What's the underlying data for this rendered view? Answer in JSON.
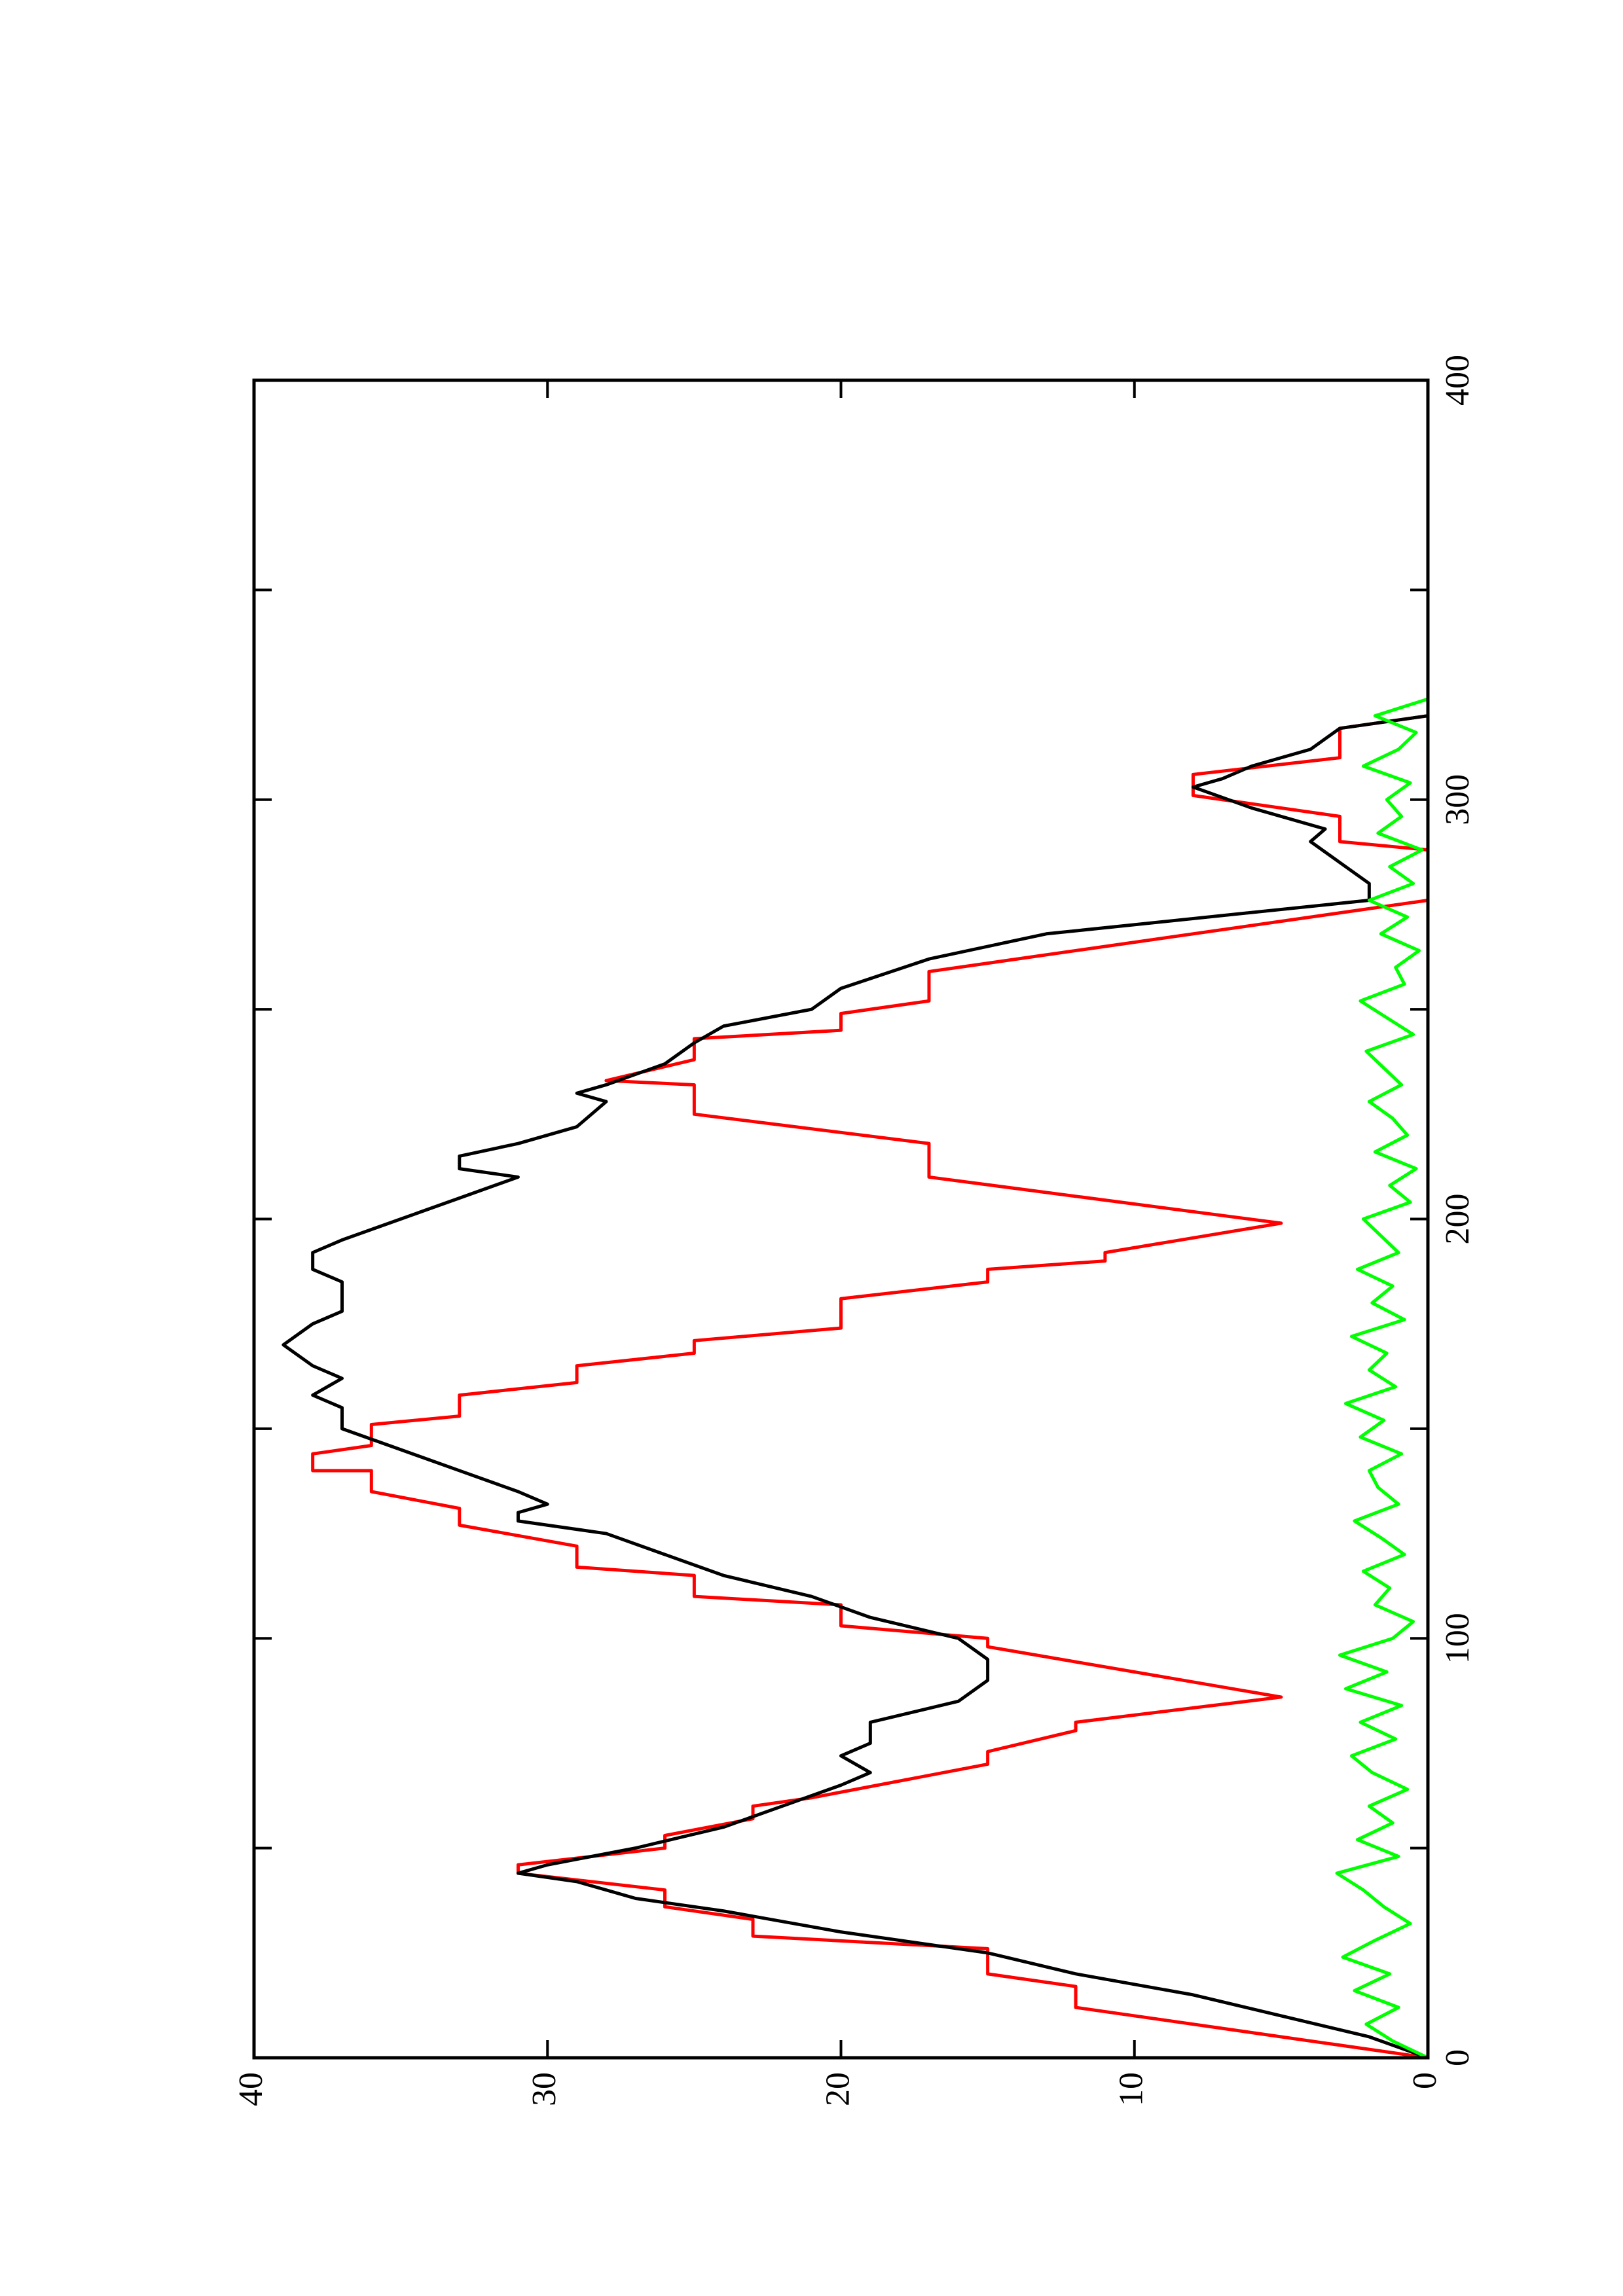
{
  "chart_data": {
    "type": "line",
    "xlim": [
      0,
      400
    ],
    "xticks": [
      0,
      100,
      200,
      300,
      400
    ],
    "xminorticks": [
      50,
      150,
      250,
      350
    ],
    "ylim": [
      0,
      40
    ],
    "yticks": [
      0,
      10,
      20,
      30,
      40
    ],
    "series": [
      {
        "color": "#ff0000",
        "x": [
          0,
          12,
          17,
          20,
          26,
          29,
          33,
          36,
          40,
          44,
          46,
          50,
          53,
          57,
          60,
          62,
          70,
          73,
          78,
          80,
          86,
          98,
          100,
          103,
          108,
          110,
          115,
          117,
          122,
          127,
          131,
          135,
          140,
          140,
          144,
          146,
          151,
          153,
          158,
          161,
          165,
          168,
          171,
          174,
          181,
          185,
          188,
          190,
          192,
          199,
          210,
          218,
          225,
          232,
          233,
          238,
          243,
          245,
          249,
          252,
          259,
          276,
          288,
          290,
          296,
          301,
          306,
          310,
          317,
          320
        ],
        "values": [
          0,
          12,
          12,
          15,
          15,
          23,
          23,
          26,
          26,
          31,
          31,
          26,
          26,
          23,
          23,
          21,
          15,
          15,
          12,
          12,
          5,
          15,
          15,
          20,
          20,
          25,
          25,
          29,
          29,
          33,
          33,
          36,
          36,
          38,
          38,
          36,
          36,
          33,
          33,
          29,
          29,
          25,
          25,
          20,
          20,
          15,
          15,
          11,
          11,
          5,
          17,
          17,
          25,
          25,
          28,
          25,
          25,
          20,
          20,
          17,
          17,
          0,
          0,
          3,
          3,
          8,
          8,
          3,
          3,
          0
        ]
      },
      {
        "color": "#000000",
        "x": [
          0,
          5,
          10,
          15,
          20,
          25,
          30,
          35,
          38,
          42,
          44,
          46,
          50,
          55,
          60,
          65,
          68,
          72,
          75,
          80,
          85,
          90,
          95,
          100,
          105,
          110,
          115,
          120,
          125,
          128,
          130,
          132,
          135,
          140,
          145,
          150,
          155,
          158,
          162,
          165,
          170,
          175,
          178,
          182,
          185,
          188,
          192,
          195,
          200,
          205,
          210,
          212,
          215,
          218,
          222,
          228,
          230,
          232,
          237,
          242,
          246,
          250,
          255,
          262,
          268,
          276,
          280,
          285,
          290,
          293,
          298,
          303,
          305,
          308,
          312,
          317,
          320
        ],
        "values": [
          0,
          2,
          5,
          8,
          12,
          15,
          20,
          24,
          27,
          29,
          31,
          30,
          27,
          24,
          22,
          20,
          19,
          20,
          19,
          19,
          16,
          15,
          15,
          16,
          19,
          21,
          24,
          26,
          28,
          31,
          31,
          30,
          31,
          33,
          35,
          37,
          37,
          38,
          37,
          38,
          39,
          38,
          37,
          37,
          37,
          38,
          38,
          37,
          35,
          33,
          31,
          33,
          33,
          31,
          29,
          28,
          29,
          28,
          26,
          25,
          24,
          21,
          20,
          17,
          13,
          2,
          2,
          3,
          4,
          3.5,
          6,
          8,
          7,
          6,
          4,
          3,
          0
        ]
      },
      {
        "color": "#00ff00",
        "x": [
          0,
          4,
          8,
          12,
          16,
          20,
          24,
          28,
          32,
          36,
          40,
          44,
          48,
          52,
          56,
          60,
          64,
          68,
          72,
          76,
          80,
          84,
          88,
          92,
          96,
          100,
          104,
          108,
          112,
          116,
          120,
          124,
          128,
          132,
          136,
          140,
          144,
          148,
          152,
          156,
          160,
          164,
          168,
          172,
          176,
          180,
          184,
          188,
          192,
          196,
          200,
          204,
          208,
          212,
          216,
          220,
          224,
          228,
          232,
          236,
          240,
          244,
          248,
          252,
          256,
          260,
          264,
          268,
          272,
          276,
          280,
          284,
          288,
          292,
          296,
          300,
          304,
          308,
          312,
          316,
          320,
          324
        ],
        "values": [
          0,
          1.2,
          2.1,
          1.0,
          2.5,
          1.3,
          2.9,
          1.8,
          0.6,
          1.5,
          2.2,
          3.1,
          1.0,
          2.4,
          1.2,
          2.0,
          0.7,
          1.9,
          2.6,
          1.1,
          2.3,
          0.9,
          2.8,
          1.4,
          3.0,
          1.2,
          0.5,
          1.8,
          1.3,
          2.2,
          0.8,
          1.6,
          2.5,
          1.0,
          1.7,
          2.0,
          0.9,
          2.3,
          1.5,
          2.8,
          1.1,
          2.0,
          1.4,
          2.6,
          0.8,
          1.9,
          1.2,
          2.4,
          1.0,
          1.6,
          2.2,
          0.6,
          1.3,
          0.4,
          1.8,
          0.7,
          1.2,
          2.0,
          0.9,
          1.5,
          2.1,
          0.5,
          1.4,
          2.3,
          0.8,
          1.1,
          0.3,
          1.6,
          0.7,
          2.0,
          0.5,
          1.3,
          0.2,
          1.7,
          0.9,
          1.4,
          0.6,
          2.2,
          1.0,
          0.4,
          1.8,
          0
        ]
      }
    ]
  }
}
